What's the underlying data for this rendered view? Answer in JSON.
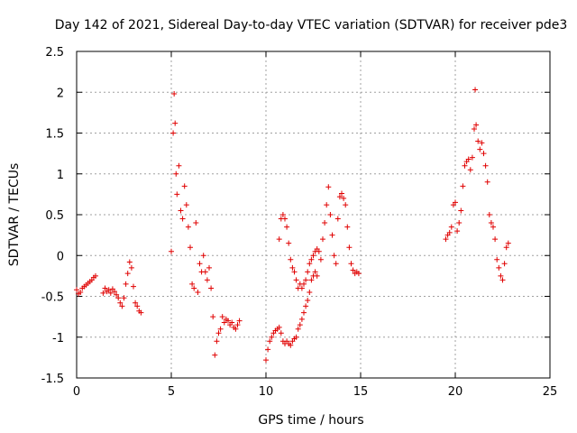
{
  "chart_data": {
    "type": "scatter",
    "title": "Day 142 of 2021, Sidereal Day-to-day VTEC variation (SDTVAR) for receiver pde3",
    "xlabel": "GPS time / hours",
    "ylabel": "SDTVAR / TECUs",
    "xlim": [
      0,
      25
    ],
    "ylim": [
      -1.5,
      2.5
    ],
    "xticks": [
      0,
      5,
      10,
      15,
      20,
      25
    ],
    "yticks": [
      -1.5,
      -1,
      -0.5,
      0,
      0.5,
      1,
      1.5,
      2,
      2.5
    ],
    "grid": true,
    "marker": "plus",
    "color": "#e00000",
    "series": [
      {
        "name": "SDTVAR",
        "points": [
          [
            0.0,
            -0.42
          ],
          [
            0.1,
            -0.47
          ],
          [
            0.2,
            -0.45
          ],
          [
            0.3,
            -0.4
          ],
          [
            0.4,
            -0.38
          ],
          [
            0.5,
            -0.36
          ],
          [
            0.6,
            -0.34
          ],
          [
            0.7,
            -0.32
          ],
          [
            0.8,
            -0.3
          ],
          [
            0.9,
            -0.27
          ],
          [
            1.0,
            -0.25
          ],
          [
            1.4,
            -0.46
          ],
          [
            1.5,
            -0.4
          ],
          [
            1.6,
            -0.44
          ],
          [
            1.7,
            -0.42
          ],
          [
            1.8,
            -0.46
          ],
          [
            1.9,
            -0.41
          ],
          [
            2.0,
            -0.44
          ],
          [
            2.1,
            -0.48
          ],
          [
            2.2,
            -0.52
          ],
          [
            2.3,
            -0.58
          ],
          [
            2.4,
            -0.62
          ],
          [
            2.5,
            -0.52
          ],
          [
            2.6,
            -0.35
          ],
          [
            2.7,
            -0.22
          ],
          [
            2.8,
            -0.08
          ],
          [
            2.9,
            -0.15
          ],
          [
            3.0,
            -0.38
          ],
          [
            3.1,
            -0.58
          ],
          [
            3.2,
            -0.62
          ],
          [
            3.3,
            -0.68
          ],
          [
            3.4,
            -0.7
          ],
          [
            5.0,
            0.05
          ],
          [
            5.1,
            1.5
          ],
          [
            5.15,
            1.98
          ],
          [
            5.2,
            1.62
          ],
          [
            5.25,
            1.0
          ],
          [
            5.3,
            0.75
          ],
          [
            5.4,
            1.1
          ],
          [
            5.5,
            0.55
          ],
          [
            5.6,
            0.45
          ],
          [
            5.7,
            0.85
          ],
          [
            5.8,
            0.62
          ],
          [
            5.9,
            0.35
          ],
          [
            6.0,
            0.1
          ],
          [
            6.1,
            -0.35
          ],
          [
            6.2,
            -0.4
          ],
          [
            6.3,
            0.4
          ],
          [
            6.4,
            -0.45
          ],
          [
            6.5,
            -0.1
          ],
          [
            6.6,
            -0.2
          ],
          [
            6.7,
            0.0
          ],
          [
            6.8,
            -0.2
          ],
          [
            6.9,
            -0.3
          ],
          [
            7.0,
            -0.15
          ],
          [
            7.1,
            -0.4
          ],
          [
            7.2,
            -0.75
          ],
          [
            7.3,
            -1.22
          ],
          [
            7.4,
            -1.05
          ],
          [
            7.5,
            -0.95
          ],
          [
            7.6,
            -0.9
          ],
          [
            7.7,
            -0.75
          ],
          [
            7.8,
            -0.82
          ],
          [
            7.9,
            -0.78
          ],
          [
            8.0,
            -0.8
          ],
          [
            8.1,
            -0.85
          ],
          [
            8.2,
            -0.82
          ],
          [
            8.3,
            -0.88
          ],
          [
            8.4,
            -0.9
          ],
          [
            8.5,
            -0.85
          ],
          [
            8.6,
            -0.8
          ],
          [
            10.0,
            -1.28
          ],
          [
            10.1,
            -1.15
          ],
          [
            10.2,
            -1.05
          ],
          [
            10.3,
            -1.0
          ],
          [
            10.4,
            -0.95
          ],
          [
            10.5,
            -0.92
          ],
          [
            10.6,
            -0.9
          ],
          [
            10.7,
            -0.88
          ],
          [
            10.8,
            -0.95
          ],
          [
            10.9,
            -1.05
          ],
          [
            11.0,
            -1.08
          ],
          [
            11.1,
            -1.05
          ],
          [
            11.2,
            -1.08
          ],
          [
            11.3,
            -1.1
          ],
          [
            11.4,
            -1.05
          ],
          [
            11.5,
            -1.02
          ],
          [
            11.6,
            -1.0
          ],
          [
            10.7,
            0.2
          ],
          [
            10.8,
            0.45
          ],
          [
            10.9,
            0.5
          ],
          [
            11.0,
            0.45
          ],
          [
            11.1,
            0.35
          ],
          [
            11.2,
            0.15
          ],
          [
            11.3,
            -0.05
          ],
          [
            11.4,
            -0.15
          ],
          [
            11.5,
            -0.2
          ],
          [
            11.6,
            -0.3
          ],
          [
            11.7,
            -0.4
          ],
          [
            11.8,
            -0.35
          ],
          [
            11.9,
            -0.4
          ],
          [
            12.0,
            -0.35
          ],
          [
            12.1,
            -0.3
          ],
          [
            12.2,
            -0.2
          ],
          [
            12.3,
            -0.1
          ],
          [
            12.4,
            -0.05
          ],
          [
            12.5,
            0.0
          ],
          [
            12.6,
            0.05
          ],
          [
            12.7,
            0.08
          ],
          [
            12.8,
            0.05
          ],
          [
            12.9,
            -0.05
          ],
          [
            13.0,
            0.2
          ],
          [
            13.1,
            0.4
          ],
          [
            13.2,
            0.62
          ],
          [
            13.3,
            0.84
          ],
          [
            13.4,
            0.5
          ],
          [
            13.5,
            0.25
          ],
          [
            13.6,
            0.0
          ],
          [
            13.7,
            -0.1
          ],
          [
            13.8,
            0.45
          ],
          [
            13.9,
            0.72
          ],
          [
            14.0,
            0.76
          ],
          [
            14.1,
            0.7
          ],
          [
            14.2,
            0.62
          ],
          [
            14.3,
            0.35
          ],
          [
            14.4,
            0.1
          ],
          [
            14.5,
            -0.1
          ],
          [
            14.6,
            -0.18
          ],
          [
            14.7,
            -0.22
          ],
          [
            14.8,
            -0.2
          ],
          [
            14.9,
            -0.22
          ],
          [
            11.7,
            -0.9
          ],
          [
            11.8,
            -0.85
          ],
          [
            11.9,
            -0.78
          ],
          [
            12.0,
            -0.7
          ],
          [
            12.1,
            -0.62
          ],
          [
            12.2,
            -0.55
          ],
          [
            12.3,
            -0.45
          ],
          [
            12.4,
            -0.3
          ],
          [
            12.5,
            -0.25
          ],
          [
            12.6,
            -0.2
          ],
          [
            12.7,
            -0.25
          ],
          [
            19.5,
            0.2
          ],
          [
            19.6,
            0.25
          ],
          [
            19.7,
            0.28
          ],
          [
            19.8,
            0.35
          ],
          [
            19.9,
            0.62
          ],
          [
            20.0,
            0.65
          ],
          [
            20.1,
            0.3
          ],
          [
            20.2,
            0.4
          ],
          [
            20.3,
            0.55
          ],
          [
            20.4,
            0.85
          ],
          [
            20.5,
            1.1
          ],
          [
            20.6,
            1.15
          ],
          [
            20.7,
            1.18
          ],
          [
            20.8,
            1.05
          ],
          [
            20.9,
            1.2
          ],
          [
            21.0,
            1.55
          ],
          [
            21.05,
            2.03
          ],
          [
            21.1,
            1.6
          ],
          [
            21.2,
            1.4
          ],
          [
            21.3,
            1.3
          ],
          [
            21.4,
            1.38
          ],
          [
            21.5,
            1.25
          ],
          [
            21.6,
            1.1
          ],
          [
            21.7,
            0.9
          ],
          [
            21.8,
            0.5
          ],
          [
            21.9,
            0.4
          ],
          [
            22.0,
            0.35
          ],
          [
            22.1,
            0.2
          ],
          [
            22.2,
            -0.05
          ],
          [
            22.3,
            -0.15
          ],
          [
            22.4,
            -0.25
          ],
          [
            22.5,
            -0.3
          ],
          [
            22.6,
            -0.1
          ],
          [
            22.7,
            0.1
          ],
          [
            22.8,
            0.15
          ]
        ]
      }
    ]
  }
}
